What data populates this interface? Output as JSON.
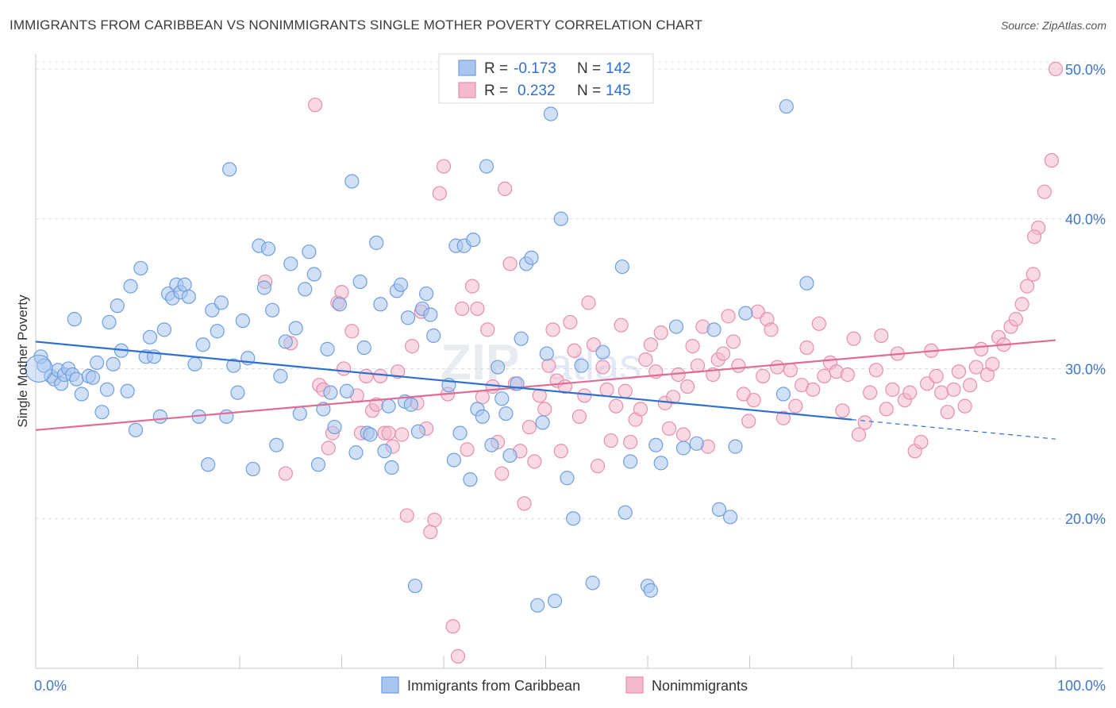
{
  "title": "IMMIGRANTS FROM CARIBBEAN VS NONIMMIGRANTS SINGLE MOTHER POVERTY CORRELATION CHART",
  "source": "Source: ZipAtlas.com",
  "watermark": {
    "left": "ZIP",
    "right": "atlas"
  },
  "chart_data": {
    "type": "scatter",
    "xlabel": "",
    "ylabel": "Single Mother Poverty",
    "xlim": [
      0,
      100
    ],
    "ylim": [
      10,
      51
    ],
    "x_ticks": [
      {
        "value": 0,
        "label": "0.0%"
      },
      {
        "value": 100,
        "label": "100.0%"
      }
    ],
    "y_ticks": [
      {
        "value": 20,
        "label": "20.0%"
      },
      {
        "value": 30,
        "label": "30.0%"
      },
      {
        "value": 40,
        "label": "40.0%"
      },
      {
        "value": 50,
        "label": "50.0%"
      }
    ],
    "grid": "horizontal dashed",
    "legend_position": "top-center",
    "bottom_legend": [
      "Immigrants from Caribbean",
      "Nonimmigrants"
    ],
    "series": [
      {
        "name": "Immigrants from Caribbean",
        "color": "#6f9fe0",
        "fill": "#a9c6ef",
        "R": "-0.173",
        "N": "142",
        "trend": {
          "x": [
            0,
            80
          ],
          "y": [
            31.8,
            26.6
          ]
        },
        "trend_dashed": {
          "x": [
            80,
            100
          ],
          "y": [
            26.6,
            25.3
          ]
        },
        "points": [
          [
            0.5,
            30.8
          ],
          [
            0.8,
            30.2
          ],
          [
            1.5,
            29.5
          ],
          [
            1.8,
            29.3
          ],
          [
            2.2,
            29.9
          ],
          [
            2.5,
            29.0
          ],
          [
            2.8,
            29.6
          ],
          [
            3.2,
            30.0
          ],
          [
            3.6,
            29.6
          ],
          [
            4.0,
            29.3
          ],
          [
            3.8,
            33.3
          ],
          [
            4.5,
            28.3
          ],
          [
            5.2,
            29.5
          ],
          [
            5.6,
            29.4
          ],
          [
            6.0,
            30.4
          ],
          [
            6.5,
            27.1
          ],
          [
            7.0,
            28.6
          ],
          [
            7.2,
            33.1
          ],
          [
            7.6,
            30.3
          ],
          [
            8.0,
            34.2
          ],
          [
            8.4,
            31.2
          ],
          [
            9.0,
            28.5
          ],
          [
            9.3,
            35.5
          ],
          [
            9.8,
            25.9
          ],
          [
            10.3,
            36.7
          ],
          [
            10.8,
            30.8
          ],
          [
            11.2,
            32.1
          ],
          [
            11.6,
            30.8
          ],
          [
            12.2,
            26.8
          ],
          [
            12.6,
            32.6
          ],
          [
            13.0,
            35.0
          ],
          [
            13.4,
            34.7
          ],
          [
            13.8,
            35.6
          ],
          [
            14.2,
            35.1
          ],
          [
            14.6,
            35.6
          ],
          [
            15.0,
            34.8
          ],
          [
            15.6,
            30.3
          ],
          [
            16.0,
            26.8
          ],
          [
            16.4,
            31.6
          ],
          [
            16.9,
            23.6
          ],
          [
            17.3,
            33.9
          ],
          [
            17.8,
            32.5
          ],
          [
            18.2,
            34.4
          ],
          [
            18.7,
            26.8
          ],
          [
            19.0,
            43.3
          ],
          [
            19.4,
            30.2
          ],
          [
            19.8,
            28.4
          ],
          [
            20.3,
            33.2
          ],
          [
            20.8,
            30.7
          ],
          [
            21.3,
            23.3
          ],
          [
            21.9,
            38.2
          ],
          [
            22.4,
            35.4
          ],
          [
            22.8,
            38.0
          ],
          [
            23.2,
            33.9
          ],
          [
            23.6,
            24.9
          ],
          [
            24.0,
            29.5
          ],
          [
            24.5,
            31.8
          ],
          [
            25.0,
            37.0
          ],
          [
            25.5,
            32.7
          ],
          [
            25.9,
            27.0
          ],
          [
            26.4,
            35.3
          ],
          [
            26.8,
            37.8
          ],
          [
            27.3,
            36.3
          ],
          [
            27.7,
            23.6
          ],
          [
            28.2,
            27.3
          ],
          [
            28.6,
            31.3
          ],
          [
            28.9,
            28.4
          ],
          [
            29.3,
            26.1
          ],
          [
            29.8,
            34.3
          ],
          [
            30.5,
            28.5
          ],
          [
            31.0,
            42.5
          ],
          [
            31.4,
            24.4
          ],
          [
            31.8,
            35.8
          ],
          [
            32.2,
            31.4
          ],
          [
            32.5,
            25.7
          ],
          [
            32.8,
            25.6
          ],
          [
            33.4,
            38.4
          ],
          [
            33.8,
            34.3
          ],
          [
            34.2,
            24.5
          ],
          [
            34.6,
            27.5
          ],
          [
            34.9,
            23.4
          ],
          [
            35.4,
            35.2
          ],
          [
            35.8,
            35.6
          ],
          [
            36.2,
            27.8
          ],
          [
            36.5,
            33.4
          ],
          [
            36.8,
            27.6
          ],
          [
            37.2,
            15.5
          ],
          [
            37.5,
            25.8
          ],
          [
            37.9,
            34.0
          ],
          [
            38.3,
            35.0
          ],
          [
            38.7,
            33.6
          ],
          [
            39.0,
            32.2
          ],
          [
            40.5,
            28.9
          ],
          [
            41.0,
            23.9
          ],
          [
            41.2,
            38.2
          ],
          [
            41.6,
            25.7
          ],
          [
            42.0,
            38.2
          ],
          [
            42.6,
            22.6
          ],
          [
            42.9,
            38.6
          ],
          [
            43.3,
            27.3
          ],
          [
            43.8,
            26.8
          ],
          [
            44.2,
            43.5
          ],
          [
            44.7,
            24.9
          ],
          [
            45.3,
            30.1
          ],
          [
            45.7,
            28.0
          ],
          [
            46.1,
            27.0
          ],
          [
            46.5,
            24.2
          ],
          [
            47.2,
            29.0
          ],
          [
            47.6,
            32.0
          ],
          [
            48.1,
            37.0
          ],
          [
            48.6,
            37.4
          ],
          [
            49.2,
            14.2
          ],
          [
            49.7,
            26.4
          ],
          [
            50.1,
            31.0
          ],
          [
            50.5,
            47.0
          ],
          [
            50.9,
            14.5
          ],
          [
            51.5,
            40.0
          ],
          [
            52.1,
            22.7
          ],
          [
            52.7,
            20.0
          ],
          [
            53.5,
            30.2
          ],
          [
            54.6,
            15.7
          ],
          [
            55.6,
            31.1
          ],
          [
            57.5,
            36.8
          ],
          [
            57.8,
            20.4
          ],
          [
            58.3,
            23.8
          ],
          [
            60.0,
            15.5
          ],
          [
            60.3,
            15.2
          ],
          [
            60.8,
            24.9
          ],
          [
            61.3,
            23.7
          ],
          [
            62.8,
            32.8
          ],
          [
            63.5,
            24.7
          ],
          [
            64.8,
            25.0
          ],
          [
            66.5,
            32.6
          ],
          [
            67.0,
            20.6
          ],
          [
            68.1,
            20.1
          ],
          [
            68.6,
            24.8
          ],
          [
            69.6,
            33.7
          ],
          [
            73.6,
            47.5
          ],
          [
            73.3,
            28.3
          ],
          [
            75.6,
            35.7
          ]
        ]
      },
      {
        "name": "Nonimmigrants",
        "color": "#e88eae",
        "fill": "#f4b9cc",
        "R": "0.232",
        "N": "145",
        "trend": {
          "x": [
            0,
            100
          ],
          "y": [
            25.9,
            31.9
          ]
        },
        "points": [
          [
            22.5,
            35.8
          ],
          [
            24.5,
            23.0
          ],
          [
            25.0,
            31.7
          ],
          [
            27.4,
            47.6
          ],
          [
            27.8,
            28.9
          ],
          [
            28.2,
            28.6
          ],
          [
            28.7,
            24.7
          ],
          [
            29.1,
            25.7
          ],
          [
            29.6,
            34.4
          ],
          [
            30.0,
            35.1
          ],
          [
            30.2,
            30.0
          ],
          [
            31.0,
            32.5
          ],
          [
            31.5,
            28.2
          ],
          [
            31.9,
            25.7
          ],
          [
            32.4,
            29.5
          ],
          [
            33.0,
            27.2
          ],
          [
            33.4,
            27.6
          ],
          [
            33.8,
            29.5
          ],
          [
            34.2,
            25.7
          ],
          [
            34.6,
            25.7
          ],
          [
            35.0,
            24.8
          ],
          [
            35.5,
            29.8
          ],
          [
            35.9,
            25.6
          ],
          [
            36.4,
            20.2
          ],
          [
            36.9,
            31.5
          ],
          [
            37.4,
            27.7
          ],
          [
            37.8,
            33.8
          ],
          [
            38.3,
            26.0
          ],
          [
            38.7,
            19.1
          ],
          [
            39.1,
            19.9
          ],
          [
            39.6,
            41.7
          ],
          [
            40.0,
            43.5
          ],
          [
            40.4,
            28.3
          ],
          [
            40.9,
            12.8
          ],
          [
            41.4,
            10.8
          ],
          [
            41.8,
            34.0
          ],
          [
            42.3,
            24.6
          ],
          [
            42.8,
            35.5
          ],
          [
            43.3,
            34.0
          ],
          [
            43.8,
            28.1
          ],
          [
            44.3,
            32.6
          ],
          [
            44.8,
            28.8
          ],
          [
            45.3,
            25.1
          ],
          [
            45.7,
            23.0
          ],
          [
            46.0,
            42.0
          ],
          [
            46.5,
            37.0
          ],
          [
            47.0,
            29.0
          ],
          [
            47.5,
            24.5
          ],
          [
            47.9,
            21.0
          ],
          [
            48.4,
            26.1
          ],
          [
            48.9,
            23.8
          ],
          [
            49.4,
            28.2
          ],
          [
            49.9,
            27.3
          ],
          [
            50.3,
            30.2
          ],
          [
            50.7,
            32.6
          ],
          [
            51.1,
            29.2
          ],
          [
            51.5,
            24.5
          ],
          [
            51.9,
            28.8
          ],
          [
            52.4,
            33.1
          ],
          [
            52.8,
            31.2
          ],
          [
            53.3,
            26.8
          ],
          [
            53.8,
            28.2
          ],
          [
            54.2,
            34.4
          ],
          [
            54.7,
            31.6
          ],
          [
            55.1,
            23.5
          ],
          [
            55.6,
            30.1
          ],
          [
            56.0,
            28.6
          ],
          [
            56.4,
            25.2
          ],
          [
            56.9,
            27.5
          ],
          [
            57.4,
            32.9
          ],
          [
            57.8,
            28.5
          ],
          [
            58.3,
            25.1
          ],
          [
            58.8,
            26.6
          ],
          [
            59.3,
            27.3
          ],
          [
            59.8,
            30.6
          ],
          [
            60.3,
            31.6
          ],
          [
            60.8,
            29.8
          ],
          [
            61.3,
            32.4
          ],
          [
            61.7,
            27.7
          ],
          [
            62.1,
            26.0
          ],
          [
            62.5,
            28.1
          ],
          [
            63.0,
            29.6
          ],
          [
            63.5,
            25.6
          ],
          [
            63.9,
            28.8
          ],
          [
            64.4,
            31.5
          ],
          [
            64.9,
            30.2
          ],
          [
            65.4,
            32.8
          ],
          [
            65.9,
            24.8
          ],
          [
            66.4,
            29.6
          ],
          [
            66.9,
            30.6
          ],
          [
            67.4,
            31.0
          ],
          [
            67.9,
            33.5
          ],
          [
            68.4,
            31.8
          ],
          [
            68.9,
            30.2
          ],
          [
            69.4,
            28.3
          ],
          [
            69.9,
            26.5
          ],
          [
            70.4,
            27.9
          ],
          [
            70.8,
            33.8
          ],
          [
            71.3,
            29.5
          ],
          [
            71.7,
            33.3
          ],
          [
            72.1,
            32.6
          ],
          [
            72.7,
            30.1
          ],
          [
            73.3,
            26.7
          ],
          [
            74.0,
            29.9
          ],
          [
            74.5,
            27.5
          ],
          [
            75.1,
            28.9
          ],
          [
            75.6,
            31.4
          ],
          [
            76.2,
            28.6
          ],
          [
            76.8,
            33.0
          ],
          [
            77.3,
            29.5
          ],
          [
            77.9,
            30.4
          ],
          [
            78.5,
            29.8
          ],
          [
            79.1,
            27.2
          ],
          [
            79.6,
            29.6
          ],
          [
            80.2,
            32.0
          ],
          [
            80.7,
            25.6
          ],
          [
            81.3,
            26.4
          ],
          [
            81.8,
            28.4
          ],
          [
            82.4,
            29.9
          ],
          [
            82.9,
            32.2
          ],
          [
            83.4,
            27.3
          ],
          [
            84.0,
            28.6
          ],
          [
            84.5,
            31.0
          ],
          [
            85.2,
            27.9
          ],
          [
            85.7,
            28.4
          ],
          [
            86.2,
            24.5
          ],
          [
            86.8,
            25.1
          ],
          [
            87.4,
            29.0
          ],
          [
            87.8,
            31.2
          ],
          [
            88.3,
            29.5
          ],
          [
            88.8,
            28.4
          ],
          [
            89.4,
            27.1
          ],
          [
            90.0,
            28.6
          ],
          [
            90.5,
            29.8
          ],
          [
            91.1,
            27.5
          ],
          [
            91.6,
            28.9
          ],
          [
            92.2,
            30.1
          ],
          [
            92.7,
            31.3
          ],
          [
            93.3,
            29.6
          ],
          [
            93.8,
            30.3
          ],
          [
            94.4,
            32.1
          ],
          [
            94.9,
            31.6
          ],
          [
            95.6,
            32.8
          ],
          [
            96.1,
            33.3
          ],
          [
            96.7,
            34.3
          ],
          [
            97.2,
            35.5
          ],
          [
            97.8,
            36.3
          ],
          [
            98.3,
            39.4
          ],
          [
            98.9,
            41.8
          ],
          [
            99.6,
            43.9
          ],
          [
            100.0,
            50.0
          ],
          [
            97.9,
            38.8
          ]
        ]
      }
    ]
  }
}
